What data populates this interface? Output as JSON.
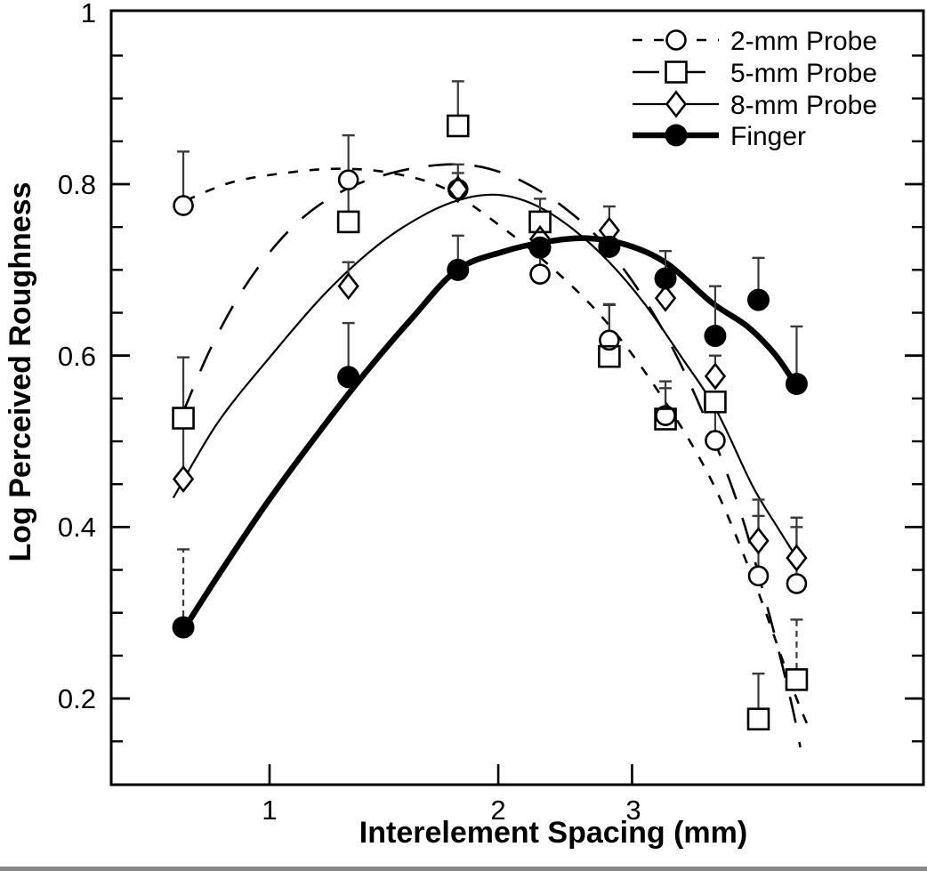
{
  "figure": {
    "background": "#ffffff",
    "ink_color": "#000000",
    "error_bar_color": "#3a3a3a"
  },
  "chart_data": {
    "type": "scatter",
    "title": "",
    "xlabel": "Interelement Spacing (mm)",
    "ylabel": "Log Perceived Roughness",
    "x_scale": "log",
    "grid": false,
    "legend_position": "top-right",
    "x_ticks": [
      1,
      2,
      3
    ],
    "x_tick_labels": [
      "1",
      "2",
      "3"
    ],
    "x_range_mm": [
      0.62,
      7.2
    ],
    "y_major_ticks": [
      0.2,
      0.4,
      0.6,
      0.8
    ],
    "y_tick_values": [
      1.0,
      0.8,
      0.6,
      0.4,
      0.2
    ],
    "y_tick_labels": [
      "1",
      "0.8",
      "0.6",
      "0.4",
      "0.2"
    ],
    "y_minor_step": 0.05,
    "y_minor_range": [
      0.15,
      0.95
    ],
    "y_range": [
      0.1,
      1.0
    ],
    "x_mm": [
      0.77,
      1.27,
      1.77,
      2.27,
      2.8,
      3.32,
      3.86,
      4.4,
      4.94
    ],
    "series": [
      {
        "name": "2-mm Probe",
        "marker": "open-circle",
        "line": "short-dash",
        "values": [
          0.775,
          0.805,
          0.794,
          0.695,
          0.618,
          0.53,
          0.501,
          0.343,
          0.334
        ],
        "err_top": [
          0.838,
          0.857,
          0.823,
          0.728,
          0.659,
          0.57,
          0.545,
          0.413,
          0.4
        ],
        "err_dashed": [],
        "fit_curve": [
          [
            0.776,
            0.781
          ],
          [
            0.89,
            0.802
          ],
          [
            1.047,
            0.813
          ],
          [
            1.231,
            0.818
          ],
          [
            1.447,
            0.813
          ],
          [
            1.7,
            0.795
          ],
          [
            2.0,
            0.753
          ],
          [
            2.35,
            0.703
          ],
          [
            2.764,
            0.641
          ],
          [
            3.25,
            0.558
          ],
          [
            3.818,
            0.454
          ],
          [
            4.371,
            0.33
          ],
          [
            4.861,
            0.216
          ],
          [
            5.134,
            0.164
          ]
        ]
      },
      {
        "name": "5-mm Probe",
        "marker": "open-square",
        "line": "long-dash",
        "values": [
          0.527,
          0.756,
          0.868,
          0.756,
          0.599,
          0.526,
          0.546,
          0.176,
          0.222
        ],
        "err_top": [
          0.598,
          0.805,
          0.92,
          0.783,
          0.66,
          0.562,
          null,
          0.229,
          0.292
        ],
        "err_dashed": [
          8
        ],
        "fit_curve": [
          [
            0.768,
            0.532
          ],
          [
            0.833,
            0.605
          ],
          [
            0.915,
            0.672
          ],
          [
            1.019,
            0.729
          ],
          [
            1.135,
            0.769
          ],
          [
            1.281,
            0.797
          ],
          [
            1.447,
            0.813
          ],
          [
            1.611,
            0.821
          ],
          [
            1.77,
            0.823
          ],
          [
            1.946,
            0.818
          ],
          [
            2.167,
            0.802
          ],
          [
            2.414,
            0.776
          ],
          [
            2.69,
            0.74
          ],
          [
            2.997,
            0.688
          ],
          [
            3.34,
            0.62
          ],
          [
            3.723,
            0.532
          ],
          [
            4.148,
            0.423
          ],
          [
            4.544,
            0.299
          ],
          [
            4.861,
            0.195
          ],
          [
            4.996,
            0.143
          ]
        ]
      },
      {
        "name": "8-mm Probe",
        "marker": "open-diamond",
        "line": "solid-thin",
        "values": [
          0.456,
          0.681,
          0.794,
          0.736,
          0.746,
          0.667,
          0.576,
          0.384,
          0.364
        ],
        "err_top": [
          0.517,
          0.709,
          0.813,
          null,
          0.774,
          null,
          0.6,
          0.432,
          0.411
        ],
        "err_dashed": [],
        "fit_curve": [
          [
            0.747,
            0.434
          ],
          [
            0.855,
            0.522
          ],
          [
            1.005,
            0.6
          ],
          [
            1.182,
            0.672
          ],
          [
            1.389,
            0.729
          ],
          [
            1.611,
            0.766
          ],
          [
            1.819,
            0.784
          ],
          [
            2.026,
            0.787
          ],
          [
            2.257,
            0.774
          ],
          [
            2.513,
            0.747
          ],
          [
            2.8,
            0.709
          ],
          [
            3.119,
            0.66
          ],
          [
            3.474,
            0.6
          ],
          [
            3.869,
            0.537
          ],
          [
            4.317,
            0.449
          ],
          [
            4.683,
            0.397
          ],
          [
            4.951,
            0.363
          ]
        ]
      },
      {
        "name": "Finger",
        "marker": "filled-circle",
        "line": "solid-thick",
        "values": [
          0.283,
          0.575,
          0.7,
          0.726,
          0.727,
          0.69,
          0.623,
          0.665,
          0.567
        ],
        "err_top": [
          0.374,
          0.638,
          0.74,
          null,
          null,
          0.722,
          0.681,
          0.714,
          0.634
        ],
        "err_dashed": [
          0
        ],
        "fit_curve": [
          [
            0.774,
            0.283
          ],
          [
            0.867,
            0.351
          ],
          [
            0.992,
            0.428
          ],
          [
            1.151,
            0.506
          ],
          [
            1.334,
            0.579
          ],
          [
            1.548,
            0.646
          ],
          [
            1.766,
            0.7
          ],
          [
            2.026,
            0.721
          ],
          [
            2.32,
            0.733
          ],
          [
            2.618,
            0.737
          ],
          [
            2.956,
            0.729
          ],
          [
            3.34,
            0.707
          ],
          [
            3.818,
            0.662
          ],
          [
            4.255,
            0.634
          ],
          [
            4.621,
            0.602
          ],
          [
            4.912,
            0.568
          ]
        ]
      }
    ]
  }
}
